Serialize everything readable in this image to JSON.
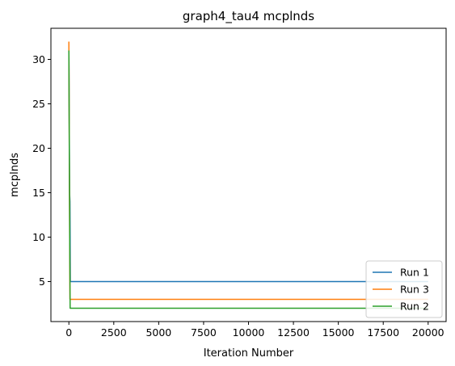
{
  "chart_data": {
    "type": "line",
    "title": "graph4_tau4 mcplnds",
    "xlabel": "Iteration Number",
    "ylabel": "mcplnds",
    "xlim": [
      -1000,
      21000
    ],
    "ylim": [
      0.5,
      33.5
    ],
    "xticks": [
      0,
      2500,
      5000,
      7500,
      10000,
      12500,
      15000,
      17500,
      20000
    ],
    "yticks": [
      5,
      10,
      15,
      20,
      25,
      30
    ],
    "legend_position": "lower right",
    "grid": false,
    "series": [
      {
        "name": "Run 1",
        "color": "#1f77b4",
        "x": [
          0,
          40,
          60,
          80,
          100,
          20000
        ],
        "y": [
          31,
          15,
          14,
          5,
          5,
          5
        ]
      },
      {
        "name": "Run 3",
        "color": "#ff7f0e",
        "x": [
          0,
          30,
          50,
          60,
          100,
          20000
        ],
        "y": [
          32,
          17,
          8,
          3,
          3,
          3
        ]
      },
      {
        "name": "Run 2",
        "color": "#2ca02c",
        "x": [
          0,
          30,
          50,
          70,
          100,
          20000
        ],
        "y": [
          31,
          17,
          8,
          2,
          2,
          2
        ]
      }
    ]
  }
}
